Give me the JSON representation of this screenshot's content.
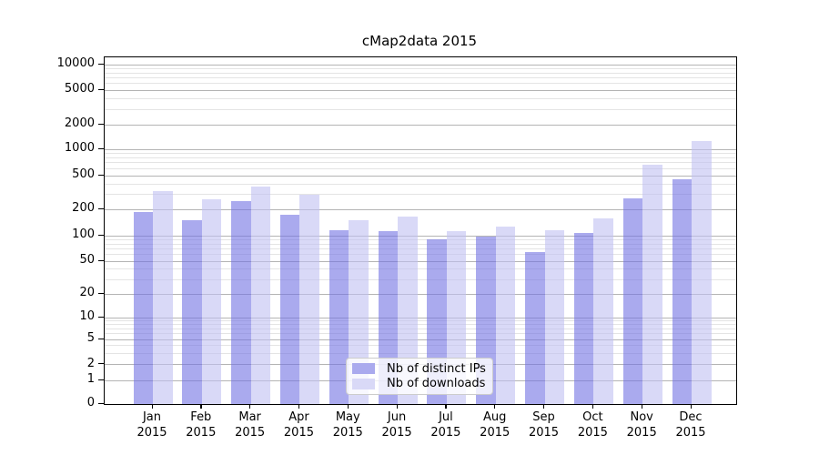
{
  "title": "cMap2data 2015",
  "colors": {
    "distinct_ips_bar": "rgba(113,113,227,0.6)",
    "downloads_bar": "rgba(192,192,242,0.6)",
    "distinct_ips_solid": "#aaaaee",
    "downloads_solid": "#d9d9f7",
    "grid_major": "#b4b4b4",
    "grid_minor": "#e4e4e4",
    "spine": "#000000"
  },
  "y_axis": {
    "major_ticks": [
      0,
      1,
      2,
      5,
      10,
      20,
      50,
      100,
      200,
      500,
      1000,
      2000,
      5000,
      10000
    ],
    "minor_ticks": [
      3,
      4,
      6,
      7,
      8,
      9,
      30,
      40,
      60,
      70,
      80,
      90,
      300,
      400,
      600,
      700,
      800,
      900,
      3000,
      4000,
      6000,
      7000,
      8000,
      9000
    ]
  },
  "x_axis": {
    "months": [
      "Jan",
      "Feb",
      "Mar",
      "Apr",
      "May",
      "Jun",
      "Jul",
      "Aug",
      "Sep",
      "Oct",
      "Nov",
      "Dec"
    ],
    "year": "2015"
  },
  "chart_data": {
    "type": "bar",
    "title": "cMap2data 2015",
    "categories": [
      "Jan 2015",
      "Feb 2015",
      "Mar 2015",
      "Apr 2015",
      "May 2015",
      "Jun 2015",
      "Jul 2015",
      "Aug 2015",
      "Sep 2015",
      "Oct 2015",
      "Nov 2015",
      "Dec 2015"
    ],
    "series": [
      {
        "name": "Nb of distinct IPs",
        "color": "#aaaaee",
        "values": [
          185,
          150,
          250,
          175,
          116,
          114,
          90,
          97,
          64,
          108,
          270,
          455
        ]
      },
      {
        "name": "Nb of downloads",
        "color": "#d9d9f7",
        "values": [
          330,
          265,
          375,
          300,
          149,
          164,
          113,
          126,
          115,
          158,
          660,
          1250
        ]
      }
    ],
    "yscale": "symlog",
    "ylim": [
      0,
      12000
    ],
    "y_tick_labels": [
      "0",
      "1",
      "2",
      "5",
      "10",
      "20",
      "50",
      "100",
      "200",
      "500",
      "1000",
      "2000",
      "5000",
      "10000"
    ],
    "grid": "on",
    "legend_position": "lower center"
  }
}
